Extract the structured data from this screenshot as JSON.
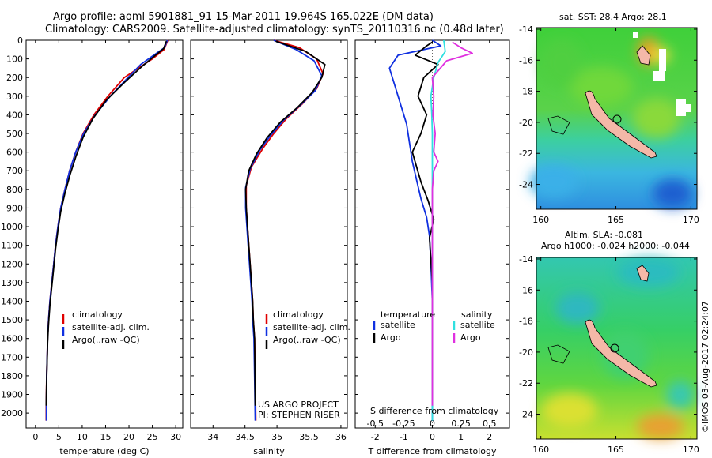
{
  "header": {
    "title_line1": "Argo profile: aoml 5901881_91 15-Mar-2011 19.964S 165.022E (DM data)",
    "title_line2": "Climatology: CARS2009. Satellite-adjusted climatology: synTS_20110316.nc (0.48d later)"
  },
  "credits": {
    "project": "US ARGO PROJECT",
    "pi": "PI: STEPHEN RISER"
  },
  "watermark": "©IMOS 03-Aug-2017 02:24:07",
  "colors": {
    "climatology": "#e00000",
    "satellite": "#1030e0",
    "argo": "#000000",
    "sat_salinity": "#30e0e0",
    "argo_salinity": "#e030e0"
  },
  "chart_data": [
    {
      "id": "temperature",
      "type": "line",
      "xlabel": "temperature (deg C)",
      "ylabel": "",
      "xlim": [
        -2,
        31.5
      ],
      "ylim": [
        2080,
        0
      ],
      "xticks": [
        0,
        5,
        10,
        15,
        20,
        25,
        30
      ],
      "yticks": [
        0,
        100,
        200,
        300,
        400,
        500,
        600,
        700,
        800,
        900,
        1000,
        1100,
        1200,
        1300,
        1400,
        1500,
        1600,
        1700,
        1800,
        1900,
        2000
      ],
      "legend": [
        "climatology",
        "satellite-adj. clim.",
        "Argo(..raw -QC)"
      ],
      "series": [
        {
          "name": "climatology",
          "color": "#e00000",
          "x": [
            28.3,
            27.5,
            25,
            22,
            19,
            15.5,
            12.5,
            10.2,
            8.6,
            7.3,
            6.3,
            5.4,
            4.8,
            4.3,
            3.9,
            3.5,
            3.1,
            2.8,
            2.6,
            2.5,
            2.4,
            2.3,
            2.3
          ],
          "y": [
            0,
            50,
            100,
            150,
            200,
            300,
            400,
            500,
            600,
            700,
            800,
            900,
            1000,
            1100,
            1200,
            1300,
            1400,
            1500,
            1600,
            1700,
            1800,
            1950,
            2040
          ]
        },
        {
          "name": "satellite-adj. clim.",
          "color": "#1030e0",
          "x": [
            28.2,
            27.6,
            25.3,
            22.5,
            19.8,
            16,
            12.8,
            10.3,
            8.6,
            7.3,
            6.3,
            5.4,
            4.8,
            4.3,
            3.9,
            3.5,
            3.1,
            2.8,
            2.6,
            2.5,
            2.4,
            2.35,
            2.35
          ],
          "y": [
            0,
            40,
            80,
            130,
            200,
            300,
            400,
            500,
            600,
            700,
            800,
            900,
            1000,
            1100,
            1200,
            1300,
            1400,
            1500,
            1600,
            1700,
            1800,
            1950,
            2040
          ]
        },
        {
          "name": "Argo(..raw -QC)",
          "color": "#000000",
          "x": [
            28,
            27.4,
            25.2,
            22.8,
            19.3,
            15.2,
            12.3,
            10.2,
            8.7,
            7.4,
            6.3,
            5.4,
            4.8,
            4.3,
            3.9,
            3.5,
            3.1,
            2.8,
            2.6,
            2.5,
            2.4,
            2.3
          ],
          "y": [
            5,
            45,
            90,
            140,
            220,
            320,
            420,
            520,
            620,
            720,
            820,
            920,
            1020,
            1120,
            1220,
            1320,
            1420,
            1520,
            1620,
            1720,
            1820,
            1960
          ]
        }
      ]
    },
    {
      "id": "salinity",
      "type": "line",
      "xlabel": "salinity",
      "ylabel": "",
      "xlim": [
        33.65,
        36.1
      ],
      "ylim": [
        2080,
        0
      ],
      "xticks": [
        34,
        34.5,
        35,
        35.5,
        36
      ],
      "xticklabels": [
        "34",
        "34.5",
        "35",
        "35.5",
        "36"
      ],
      "legend": [
        "climatology",
        "satellite-adj. clim.",
        "Argo(..raw -QC)"
      ],
      "series": [
        {
          "name": "climatology",
          "color": "#e00000",
          "x": [
            34.95,
            35.35,
            35.62,
            35.72,
            35.62,
            35.4,
            35.15,
            34.95,
            34.78,
            34.6,
            34.52,
            34.52,
            34.54,
            34.56,
            34.58,
            34.6,
            34.62,
            34.63,
            34.65,
            34.66,
            34.67
          ],
          "y": [
            0,
            40,
            100,
            180,
            260,
            340,
            420,
            500,
            580,
            680,
            780,
            900,
            1000,
            1100,
            1200,
            1300,
            1400,
            1500,
            1600,
            1800,
            2040
          ]
        },
        {
          "name": "satellite-adj. clim.",
          "color": "#1030e0",
          "x": [
            34.95,
            35.3,
            35.58,
            35.7,
            35.6,
            35.36,
            35.1,
            34.9,
            34.73,
            34.58,
            34.51,
            34.51,
            34.53,
            34.55,
            34.57,
            34.59,
            34.61,
            34.62,
            34.64,
            34.65,
            34.66
          ],
          "y": [
            0,
            50,
            110,
            190,
            270,
            350,
            430,
            510,
            590,
            690,
            790,
            900,
            1000,
            1100,
            1200,
            1300,
            1400,
            1500,
            1600,
            1800,
            2040
          ]
        },
        {
          "name": "Argo(..raw -QC)",
          "color": "#000000",
          "x": [
            34.98,
            35.45,
            35.75,
            35.7,
            35.55,
            35.32,
            35.05,
            34.85,
            34.68,
            34.56,
            34.51,
            34.52,
            34.54,
            34.56,
            34.58,
            34.6,
            34.62,
            34.63,
            34.65,
            34.66
          ],
          "y": [
            5,
            60,
            130,
            200,
            280,
            360,
            440,
            520,
            610,
            700,
            800,
            900,
            1000,
            1100,
            1200,
            1300,
            1400,
            1500,
            1600,
            1960
          ]
        }
      ]
    },
    {
      "id": "differences",
      "type": "line",
      "xlabel": "T difference from climatology",
      "xlabel_top": "S difference from climatology",
      "xlim": [
        -2.7,
        2.7
      ],
      "ylim": [
        2080,
        0
      ],
      "xticks": [
        -2,
        -1,
        0,
        1,
        2
      ],
      "xticks_top": [
        -0.5,
        -0.25,
        0,
        0.25,
        0.5
      ],
      "xticks_top_labels": [
        "-0.5",
        "-0.25",
        "0",
        "0.25",
        "0.5"
      ],
      "legend_temperature": {
        "heading": "temperature",
        "items": [
          "satellite",
          "Argo"
        ]
      },
      "legend_salinity": {
        "heading": "salinity",
        "items": [
          "satellite",
          "Argo"
        ]
      },
      "series": [
        {
          "name": "satellite",
          "group": "temperature",
          "color": "#1030e0",
          "x": [
            0,
            0.3,
            -1.2,
            -1.5,
            -1.3,
            -1.1,
            -0.9,
            -0.8,
            -0.7,
            -0.55,
            -0.4,
            -0.2,
            -0.1,
            -0.05,
            0,
            0,
            0,
            0
          ],
          "y": [
            0,
            30,
            80,
            150,
            250,
            350,
            450,
            550,
            650,
            750,
            850,
            950,
            1050,
            1200,
            1400,
            1600,
            1800,
            2040
          ]
        },
        {
          "name": "Argo",
          "group": "temperature",
          "color": "#000000",
          "x": [
            0,
            -0.2,
            -0.6,
            0.2,
            -0.3,
            -0.5,
            -0.2,
            -0.4,
            -0.7,
            -0.4,
            -0.15,
            0.05,
            -0.1,
            0,
            0,
            0
          ],
          "y": [
            10,
            30,
            80,
            130,
            200,
            300,
            400,
            500,
            600,
            760,
            860,
            960,
            1060,
            1300,
            1600,
            1960
          ]
        },
        {
          "name": "satellite",
          "group": "salinity",
          "color": "#30e0e0",
          "x": [
            0.4,
            0.45,
            0.2,
            0.05,
            -0.05,
            -0.02,
            0,
            0,
            0,
            0,
            0,
            0,
            0
          ],
          "y": [
            0,
            60,
            120,
            200,
            300,
            400,
            500,
            700,
            900,
            1200,
            1500,
            1800,
            2040
          ]
        },
        {
          "name": "Argo",
          "group": "salinity",
          "color": "#e030e0",
          "x": [
            0.7,
            1.0,
            1.4,
            0.5,
            0.0,
            0.05,
            0.02,
            0.1,
            0.05,
            0.2,
            0.05,
            0,
            0,
            0
          ],
          "y": [
            10,
            40,
            70,
            110,
            200,
            300,
            400,
            500,
            600,
            650,
            700,
            800,
            1200,
            1960
          ]
        }
      ]
    }
  ],
  "maps": [
    {
      "id": "sst",
      "title": "sat. SST: 28.4  Argo: 28.1",
      "yticks": [
        -14,
        -16,
        -18,
        -20,
        -22,
        -24
      ],
      "xticks": [
        160,
        165,
        170
      ]
    },
    {
      "id": "sla",
      "title": "Altim. SLA: -0.081",
      "title2": "Argo h1000: -0.024 h2000: -0.044",
      "yticks": [
        -14,
        -16,
        -18,
        -20,
        -22,
        -24
      ],
      "xticks": [
        160,
        165,
        170
      ]
    }
  ]
}
